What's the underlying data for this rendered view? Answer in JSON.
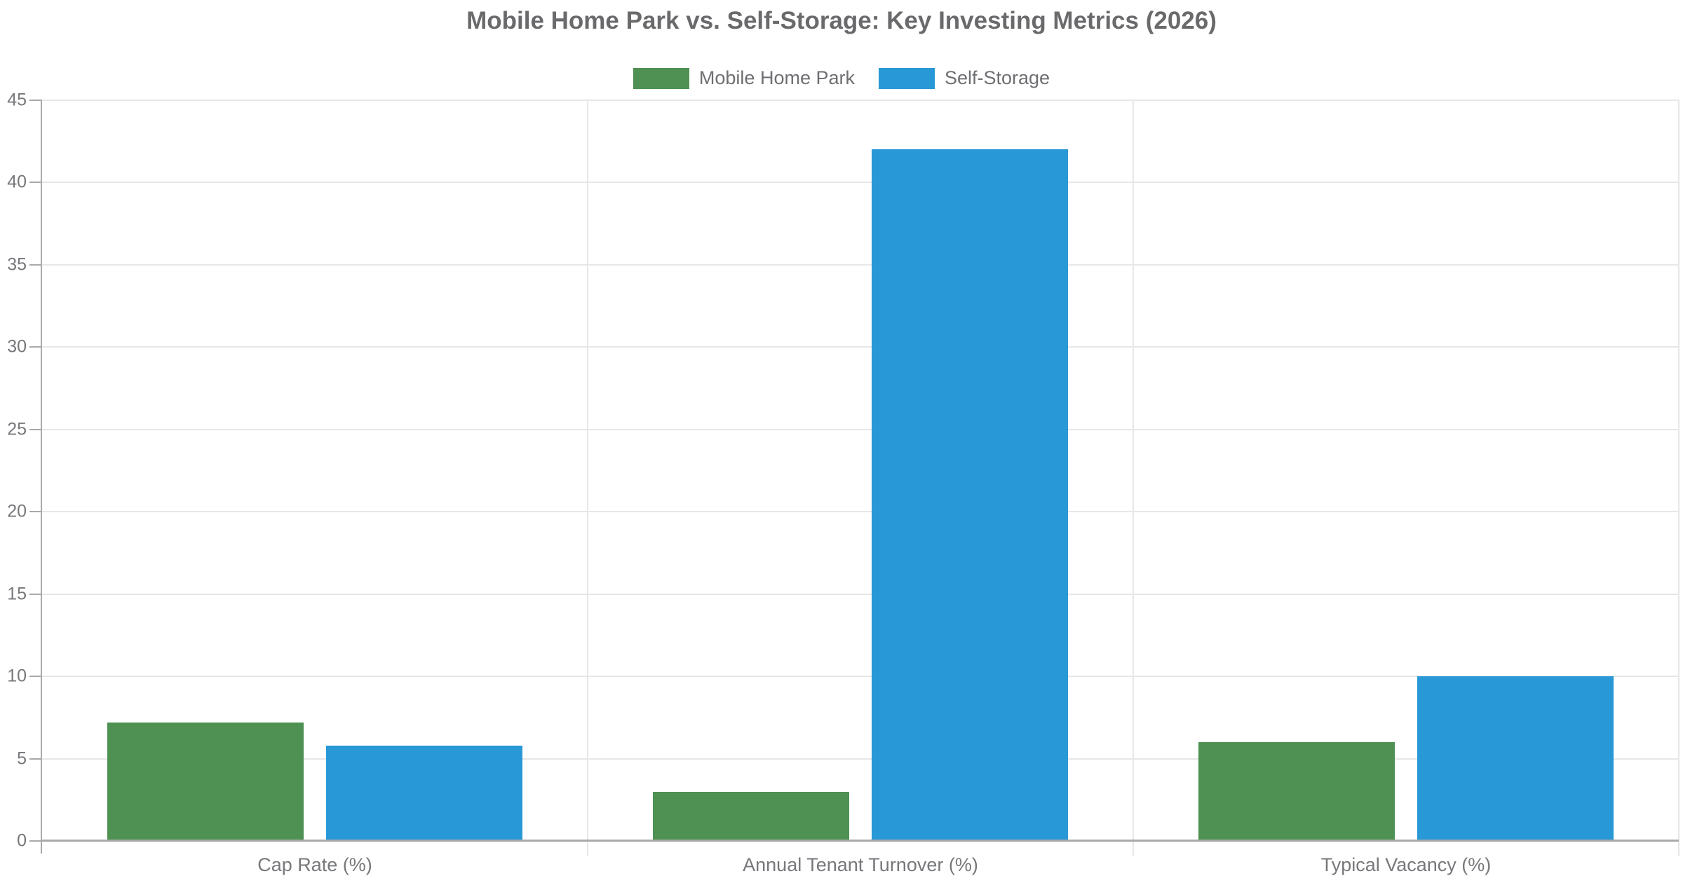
{
  "chart_data": {
    "type": "bar",
    "title": "Mobile Home Park vs. Self-Storage: Key Investing Metrics (2026)",
    "categories": [
      "Cap Rate (%)",
      "Annual Tenant Turnover (%)",
      "Typical Vacancy (%)"
    ],
    "series": [
      {
        "name": "Mobile Home Park",
        "color": "#4E9152",
        "values": [
          7.2,
          3,
          6
        ]
      },
      {
        "name": "Self-Storage",
        "color": "#2998D6",
        "values": [
          5.8,
          42,
          10
        ]
      }
    ],
    "xlabel": "",
    "ylabel": "",
    "ylim": [
      0,
      45
    ],
    "yticks": [
      0,
      5,
      10,
      15,
      20,
      25,
      30,
      35,
      40,
      45
    ],
    "grid": true,
    "legend_position": "top",
    "colors": {
      "grid": "#E7E7E7",
      "axis": "#A9A9AB",
      "title_text": "#6A6A6D",
      "tick_text": "#77787B"
    }
  }
}
